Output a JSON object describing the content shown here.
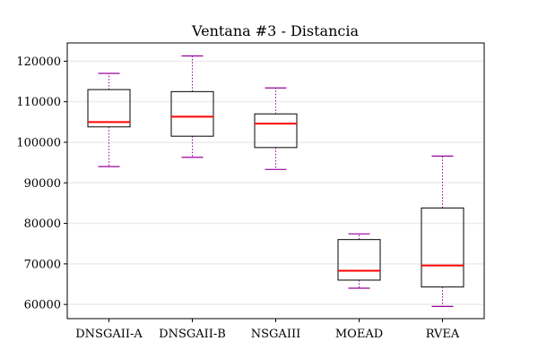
{
  "chart_data": {
    "type": "boxplot",
    "title": "Ventana #3 - Distancia",
    "xlabel": "",
    "ylabel": "",
    "ylim": [
      56500,
      124500
    ],
    "yticks": [
      60000,
      70000,
      80000,
      90000,
      100000,
      110000,
      120000
    ],
    "grid": "horizontal",
    "categories": [
      "DNSGAII-A",
      "DNSGAII-B",
      "NSGAIII",
      "MOEAD",
      "RVEA"
    ],
    "boxes": [
      {
        "name": "DNSGAII-A",
        "whisker_low": 94000,
        "q1": 103800,
        "median": 105000,
        "q3": 113000,
        "whisker_high": 117000
      },
      {
        "name": "DNSGAII-B",
        "whisker_low": 96300,
        "q1": 101500,
        "median": 106300,
        "q3": 112500,
        "whisker_high": 121300
      },
      {
        "name": "NSGAIII",
        "whisker_low": 93300,
        "q1": 98700,
        "median": 104600,
        "q3": 107000,
        "whisker_high": 113400
      },
      {
        "name": "MOEAD",
        "whisker_low": 64000,
        "q1": 66000,
        "median": 68300,
        "q3": 76000,
        "whisker_high": 77400
      },
      {
        "name": "RVEA",
        "whisker_low": 59500,
        "q1": 64300,
        "median": 69600,
        "q3": 83800,
        "whisker_high": 96600
      }
    ],
    "colors": {
      "box": "#000000",
      "median": "#ff0000",
      "whisker": "#990099",
      "grid": "#ececec",
      "axis": "#000000"
    }
  }
}
